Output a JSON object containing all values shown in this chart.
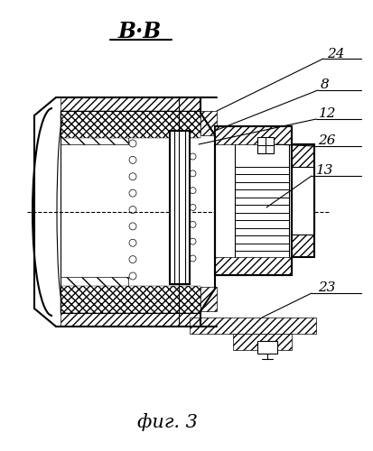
{
  "bg_color": "#ffffff",
  "line_color": "#000000",
  "title": "В·В",
  "caption": "фиг. 3",
  "lw_main": 1.5,
  "lw_thin": 0.8,
  "label_fontsize": 11,
  "title_fontsize": 17,
  "caption_fontsize": 15,
  "labels": [
    "24",
    "8",
    "12",
    "26",
    "13",
    "23"
  ]
}
